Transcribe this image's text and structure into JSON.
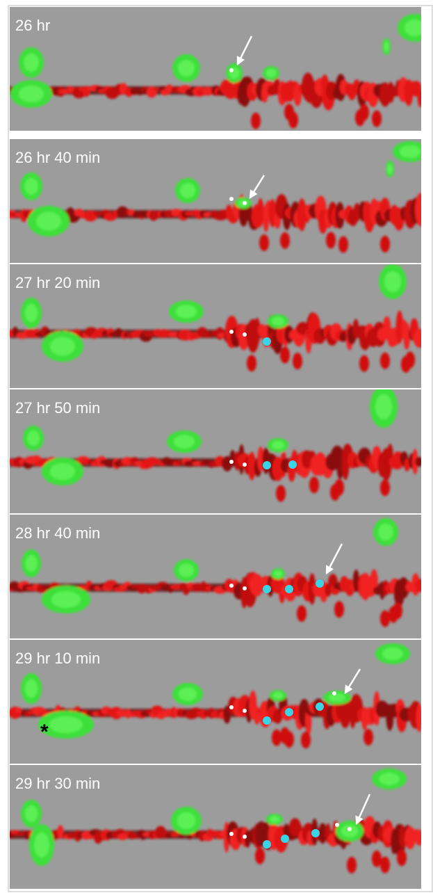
{
  "panels": [
    {
      "label": "26 hr"
    },
    {
      "label": "26 hr 40 min"
    },
    {
      "label": "27 hr 20 min"
    },
    {
      "label": "27 hr 50 min"
    },
    {
      "label": "28 hr 40 min"
    },
    {
      "label": "29 hr 10 min",
      "marker": "*"
    },
    {
      "label": "29 hr 30 min"
    }
  ]
}
